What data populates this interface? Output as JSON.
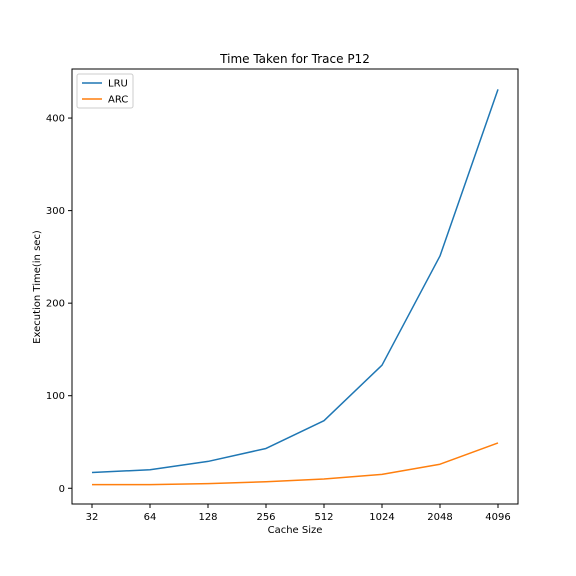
{
  "chart_data": {
    "type": "line",
    "title": "Time Taken for Trace P12",
    "xlabel": "Cache Size",
    "ylabel": "Execution Time(in sec)",
    "categories": [
      "32",
      "64",
      "128",
      "256",
      "512",
      "1024",
      "2048",
      "4096"
    ],
    "yticks": [
      0,
      100,
      200,
      300,
      400
    ],
    "ylim": [
      -17,
      453
    ],
    "grid": false,
    "legend_position": "top-left",
    "series": [
      {
        "name": "LRU",
        "color": "#1f77b4",
        "values": [
          17,
          20,
          29,
          43,
          73,
          133,
          251,
          431
        ]
      },
      {
        "name": "ARC",
        "color": "#ff7f0e",
        "values": [
          4,
          4,
          5,
          7,
          10,
          15,
          26,
          49
        ]
      }
    ]
  }
}
